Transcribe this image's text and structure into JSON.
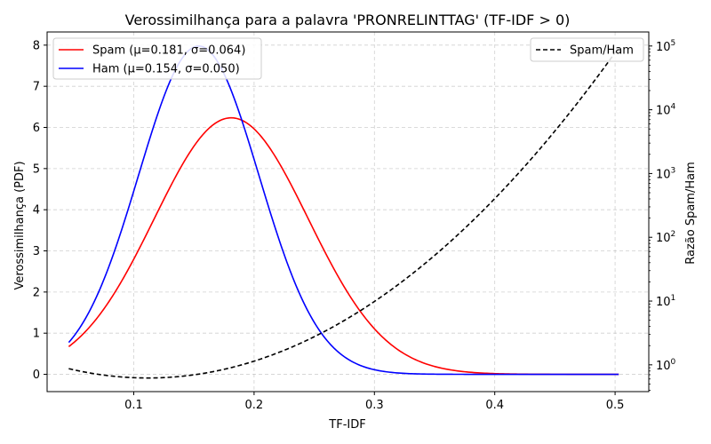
{
  "chart_data": {
    "type": "line",
    "title": "Verossimilhança para a palavra 'PRONRELINTTAG' (TF-IDF > 0)",
    "xlabel": "TF-IDF",
    "ylabel_left": "Verossimilhança (PDF)",
    "ylabel_right": "Razão Spam/Ham",
    "xlim": [
      0.028,
      0.528
    ],
    "ylim_left": [
      -0.42,
      8.32
    ],
    "ylim_right_log10": [
      -0.42,
      5.22
    ],
    "right_scale": "log",
    "grid": true,
    "x_ticks": [
      0.1,
      0.2,
      0.3,
      0.4,
      0.5
    ],
    "x_tick_labels": [
      "0.1",
      "0.2",
      "0.3",
      "0.4",
      "0.5"
    ],
    "y_left_ticks": [
      0,
      1,
      2,
      3,
      4,
      5,
      6,
      7,
      8
    ],
    "y_left_tick_labels": [
      "0",
      "1",
      "2",
      "3",
      "4",
      "5",
      "6",
      "7",
      "8"
    ],
    "y_right_ticks": [
      1,
      10,
      100,
      1000,
      10000,
      100000
    ],
    "y_right_tick_labels": [
      {
        "base": "10",
        "exp": "0"
      },
      {
        "base": "10",
        "exp": "1"
      },
      {
        "base": "10",
        "exp": "2"
      },
      {
        "base": "10",
        "exp": "3"
      },
      {
        "base": "10",
        "exp": "4"
      },
      {
        "base": "10",
        "exp": "5"
      }
    ],
    "x_range": [
      0.046,
      0.503
    ],
    "series": [
      {
        "name": "Spam (μ=0.181, σ=0.064)",
        "axis": "left",
        "color": "#ff0000",
        "style": "solid",
        "distribution": "normal",
        "mu": 0.181,
        "sigma": 0.064
      },
      {
        "name": "Ham (μ=0.154, σ=0.050)",
        "axis": "left",
        "color": "#0000ff",
        "style": "solid",
        "distribution": "normal",
        "mu": 0.154,
        "sigma": 0.05
      },
      {
        "name": "Spam/Ham",
        "axis": "right",
        "color": "#000000",
        "style": "dashed",
        "distribution": "ratio"
      }
    ],
    "legend_left_placement": "top-left",
    "legend_right_placement": "top-right"
  }
}
